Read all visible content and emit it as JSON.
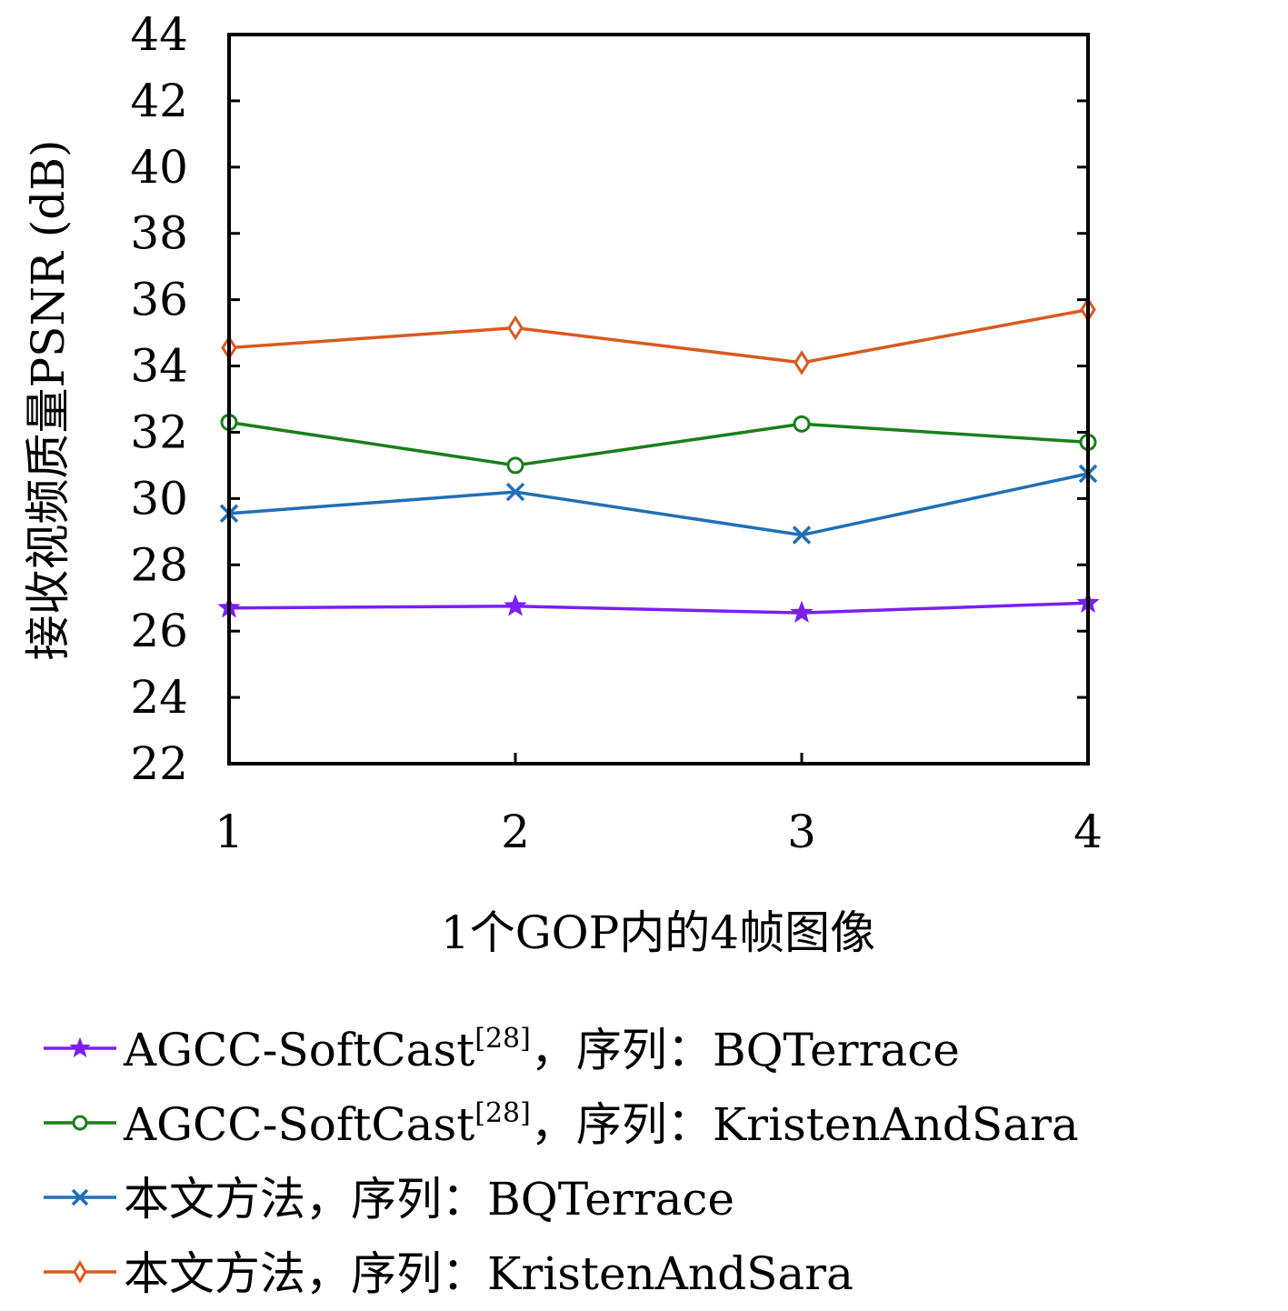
{
  "chart_data": {
    "type": "line",
    "xlabel": "1个GOP内的4帧图像",
    "ylabel": "接收视频质量PSNR (dB)",
    "x": [
      1,
      2,
      3,
      4
    ],
    "xticks": [
      "1",
      "2",
      "3",
      "4"
    ],
    "xlim": [
      1,
      4
    ],
    "ylim": [
      22,
      44
    ],
    "yticks": [
      "22",
      "24",
      "26",
      "28",
      "30",
      "32",
      "34",
      "36",
      "38",
      "40",
      "42",
      "44"
    ],
    "grid": false,
    "legend_position": "bottom",
    "series": [
      {
        "name": "AGCC-SoftCast[28]，序列：BQTerrace",
        "name_main": "AGCC-SoftCast",
        "name_sup": "[28]",
        "name_rest": "，序列：BQTerrace",
        "color": "#7a1ff5",
        "marker": "star",
        "values": [
          26.7,
          26.75,
          26.55,
          26.85
        ]
      },
      {
        "name": "AGCC-SoftCast[28]，序列：KristenAndSara",
        "name_main": "AGCC-SoftCast",
        "name_sup": "[28]",
        "name_rest": "，序列：KristenAndSara",
        "color": "#1a7f1a",
        "marker": "circle",
        "values": [
          32.3,
          31.0,
          32.25,
          31.7
        ]
      },
      {
        "name": "本文方法，序列：BQTerrace",
        "name_main": "本文方法，序列：BQTerrace",
        "name_sup": "",
        "name_rest": "",
        "color": "#1f6fb5",
        "marker": "x",
        "values": [
          29.55,
          30.2,
          28.9,
          30.75
        ]
      },
      {
        "name": "本文方法，序列：KristenAndSara",
        "name_main": "本文方法，序列：KristenAndSara",
        "name_sup": "",
        "name_rest": "",
        "color": "#d95a1e",
        "marker": "diamond",
        "values": [
          34.55,
          35.15,
          34.1,
          35.7
        ]
      }
    ]
  }
}
